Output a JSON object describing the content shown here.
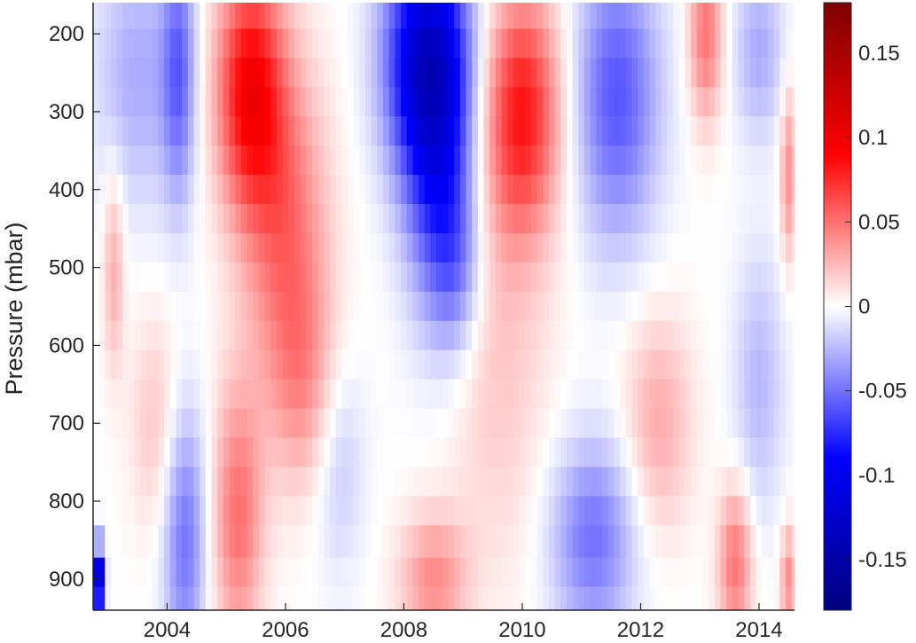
{
  "chart_data": {
    "type": "heatmap",
    "title": "",
    "xlabel": "",
    "ylabel": "Pressure (mbar)",
    "x_ticks": [
      "2004",
      "2006",
      "2008",
      "2010",
      "2012",
      "2014"
    ],
    "y_ticks": [
      "200",
      "300",
      "400",
      "500",
      "600",
      "700",
      "800",
      "900"
    ],
    "colorbar_ticks": [
      "0.15",
      "0.1",
      "0.05",
      "0",
      "-0.05",
      "-0.1",
      "-0.15"
    ],
    "x_start": 2002.75,
    "x_end": 2014.6,
    "x_step": 0.1,
    "y_range": [
      160,
      940
    ],
    "y_reversed": true,
    "pressure_levels": [
      175,
      212,
      250,
      287,
      325,
      362,
      400,
      437,
      475,
      512,
      550,
      587,
      625,
      662,
      700,
      737,
      775,
      812,
      850,
      895,
      925
    ],
    "color_limits": [
      -0.18,
      0.18
    ],
    "colormap": "blue-white-red",
    "colors": {
      "negative_max": "#00007f",
      "negative": "#0000ff",
      "zero": "#ffffff",
      "positive": "#ff0000",
      "positive_max": "#7f0000"
    },
    "features": [
      {
        "t": 2003.1,
        "p": 500,
        "v": 0.03,
        "st": 0.12,
        "sp": 90
      },
      {
        "t": 2003.5,
        "p": 250,
        "v": -0.03,
        "st": 0.5,
        "sp": 120
      },
      {
        "t": 2004.2,
        "p": 250,
        "v": -0.05,
        "st": 0.2,
        "sp": 120
      },
      {
        "t": 2004.3,
        "p": 850,
        "v": -0.05,
        "st": 0.25,
        "sp": 120
      },
      {
        "t": 2003.8,
        "p": 700,
        "v": 0.02,
        "st": 0.3,
        "sp": 100
      },
      {
        "t": 2005.4,
        "p": 270,
        "v": 0.09,
        "st": 0.4,
        "sp": 110
      },
      {
        "t": 2006.0,
        "p": 450,
        "v": 0.05,
        "st": 0.5,
        "sp": 150
      },
      {
        "t": 2005.2,
        "p": 820,
        "v": 0.05,
        "st": 0.3,
        "sp": 120
      },
      {
        "t": 2006.3,
        "p": 650,
        "v": 0.03,
        "st": 0.4,
        "sp": 100
      },
      {
        "t": 2006.9,
        "p": 750,
        "v": -0.02,
        "st": 0.3,
        "sp": 100
      },
      {
        "t": 2008.4,
        "p": 230,
        "v": -0.12,
        "st": 0.5,
        "sp": 110
      },
      {
        "t": 2008.6,
        "p": 400,
        "v": -0.06,
        "st": 0.4,
        "sp": 130
      },
      {
        "t": 2008.9,
        "p": 500,
        "v": -0.03,
        "st": 0.3,
        "sp": 80
      },
      {
        "t": 2008.5,
        "p": 900,
        "v": 0.04,
        "st": 0.4,
        "sp": 60
      },
      {
        "t": 2010.0,
        "p": 300,
        "v": 0.08,
        "st": 0.45,
        "sp": 110
      },
      {
        "t": 2009.6,
        "p": 600,
        "v": 0.02,
        "st": 0.6,
        "sp": 200
      },
      {
        "t": 2011.6,
        "p": 280,
        "v": -0.06,
        "st": 0.5,
        "sp": 130
      },
      {
        "t": 2011.2,
        "p": 850,
        "v": -0.05,
        "st": 0.5,
        "sp": 90
      },
      {
        "t": 2012.3,
        "p": 700,
        "v": 0.03,
        "st": 0.4,
        "sp": 100
      },
      {
        "t": 2013.1,
        "p": 200,
        "v": 0.05,
        "st": 0.2,
        "sp": 80
      },
      {
        "t": 2013.6,
        "p": 880,
        "v": 0.05,
        "st": 0.2,
        "sp": 70
      },
      {
        "t": 2014.0,
        "p": 220,
        "v": -0.03,
        "st": 0.3,
        "sp": 80
      },
      {
        "t": 2014.0,
        "p": 650,
        "v": -0.025,
        "st": 0.3,
        "sp": 120
      },
      {
        "t": 2002.85,
        "p": 900,
        "v": -0.16,
        "st": 0.06,
        "sp": 30
      },
      {
        "t": 2014.5,
        "p": 380,
        "v": 0.04,
        "st": 0.1,
        "sp": 80
      },
      {
        "t": 2014.5,
        "p": 900,
        "v": 0.04,
        "st": 0.1,
        "sp": 50
      }
    ]
  }
}
